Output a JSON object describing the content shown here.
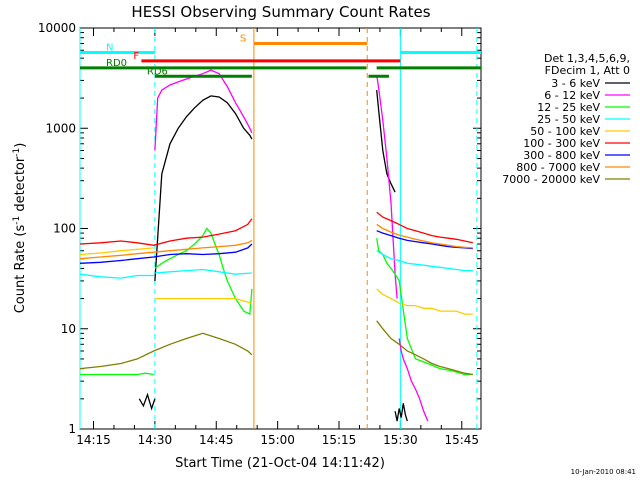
{
  "chart_data": {
    "type": "line",
    "title": "HESSI Observing Summary Count Rates",
    "xlabel": "Start Time (21-Oct-04 14:11:42)",
    "ylabel_main": "Count Rate (s",
    "ylabel_sup1": "-1",
    "ylabel_mid": " detector",
    "ylabel_sup2": "-1",
    "ylabel_end": ")",
    "y_scale": "log",
    "ylim": [
      1,
      10000
    ],
    "xlim_minutes": [
      0,
      98
    ],
    "x_ticks": [
      {
        "label": "14:15",
        "minutes": 3.3
      },
      {
        "label": "14:30",
        "minutes": 18.3
      },
      {
        "label": "14:45",
        "minutes": 33.3
      },
      {
        "label": "15:00",
        "minutes": 48.3
      },
      {
        "label": "15:15",
        "minutes": 63.3
      },
      {
        "label": "15:30",
        "minutes": 78.3
      },
      {
        "label": "15:45",
        "minutes": 93.3
      }
    ],
    "y_ticks": [
      {
        "label": "1",
        "value": 1
      },
      {
        "label": "10",
        "value": 10
      },
      {
        "label": "100",
        "value": 100
      },
      {
        "label": "1000",
        "value": 1000
      },
      {
        "label": "10000",
        "value": 10000
      }
    ],
    "legend_header": [
      "Det 1,3,4,5,6,9,",
      "FDecim 1, Att 0"
    ],
    "legend_placement": "right",
    "series": [
      {
        "name": "3 - 6 keV",
        "color": "#000000",
        "segments": [
          {
            "x": [
              14.5,
              15.5,
              16.5,
              17.5,
              18.3
            ],
            "y": [
              2,
              1.7,
              2.2,
              1.6,
              2
            ]
          },
          {
            "x": [
              18.3,
              20,
              22,
              24,
              26,
              28,
              30,
              32,
              34,
              36,
              38,
              40,
              41.5,
              42
            ],
            "y": [
              30,
              350,
              700,
              1000,
              1300,
              1600,
              1900,
              2100,
              2050,
              1800,
              1400,
              1000,
              850,
              780
            ]
          },
          {
            "x": [
              72.5,
              73,
              74,
              75,
              76,
              77
            ],
            "y": [
              2400,
              1500,
              600,
              350,
              280,
              230
            ]
          },
          {
            "x": [
              77,
              77.5,
              78,
              78.5,
              79,
              79.5,
              80
            ],
            "y": [
              1.5,
              1.2,
              1.6,
              1.3,
              1.8,
              1.4,
              1.2
            ]
          }
        ]
      },
      {
        "name": "6 - 12 keV",
        "color": "#ff00ff",
        "segments": [
          {
            "x": [
              18.3,
              19,
              20,
              22,
              24,
              26,
              28,
              30,
              32,
              34,
              36,
              38,
              40,
              41.5,
              42
            ],
            "y": [
              600,
              2000,
              2400,
              2700,
              2900,
              3100,
              3300,
              3500,
              3800,
              3500,
              2600,
              1800,
              1300,
              1000,
              900
            ]
          },
          {
            "x": [
              72.5,
              73,
              74,
              75,
              76,
              77,
              77.5
            ],
            "y": [
              3400,
              2500,
              1200,
              500,
              180,
              35,
              20
            ]
          },
          {
            "x": [
              78,
              78.5,
              79,
              80,
              81,
              82,
              83,
              84,
              85
            ],
            "y": [
              8,
              6,
              5,
              4,
              3,
              2.5,
              2,
              1.5,
              1.2
            ]
          }
        ]
      },
      {
        "name": "12 - 25 keV",
        "color": "#00ff00",
        "segments": [
          {
            "x": [
              0,
              5,
              10,
              14,
              16,
              18
            ],
            "y": [
              3.5,
              3.5,
              3.5,
              3.5,
              3.6,
              3.5
            ]
          },
          {
            "x": [
              18.3,
              20,
              22,
              24,
              26,
              28,
              30,
              31,
              32,
              33,
              34,
              35,
              36,
              38,
              40,
              41.5,
              42
            ],
            "y": [
              40,
              45,
              50,
              55,
              60,
              70,
              85,
              100,
              90,
              70,
              55,
              40,
              30,
              20,
              15,
              14,
              25
            ]
          },
          {
            "x": [
              72.5,
              73,
              74,
              75,
              76,
              77,
              78,
              80,
              82,
              85,
              88,
              91,
              94,
              96
            ],
            "y": [
              80,
              60,
              55,
              45,
              40,
              35,
              30,
              8,
              5,
              4.5,
              4,
              3.8,
              3.5,
              3.5
            ]
          }
        ]
      },
      {
        "name": "25 - 50 keV",
        "color": "#00ffff",
        "segments": [
          {
            "x": [
              0,
              5,
              10,
              14,
              18
            ],
            "y": [
              35,
              33,
              32,
              34,
              34
            ]
          },
          {
            "x": [
              18.3,
              22,
              26,
              30,
              34,
              38,
              42
            ],
            "y": [
              36,
              37,
              38,
              39,
              37,
              35,
              36
            ]
          },
          {
            "x": [
              72.5,
              74,
              76,
              78,
              80,
              82,
              84,
              86,
              88,
              90,
              92,
              94,
              96
            ],
            "y": [
              60,
              55,
              50,
              48,
              45,
              44,
              43,
              42,
              41,
              40,
              39,
              38,
              38
            ]
          }
        ]
      },
      {
        "name": "50 - 100 keV",
        "color": "#ffcc00",
        "segments": [
          {
            "x": [
              0,
              5,
              10,
              14,
              18
            ],
            "y": [
              55,
              57,
              60,
              62,
              64
            ]
          },
          {
            "x": [
              18.3,
              22,
              26,
              30,
              34,
              38,
              42
            ],
            "y": [
              20,
              20,
              20,
              20,
              20,
              20,
              18
            ]
          },
          {
            "x": [
              72.5,
              74,
              76,
              78,
              80,
              82,
              84,
              86,
              88,
              90,
              92,
              94,
              96
            ],
            "y": [
              25,
              22,
              20,
              18,
              17,
              17,
              16,
              16,
              15,
              15,
              15,
              14,
              14
            ]
          }
        ]
      },
      {
        "name": "100 - 300 keV",
        "color": "#ff0000",
        "segments": [
          {
            "x": [
              0,
              5,
              10,
              14,
              18,
              22,
              26,
              30,
              34,
              38,
              41,
              42
            ],
            "y": [
              70,
              72,
              75,
              72,
              68,
              75,
              80,
              82,
              88,
              95,
              110,
              125
            ]
          },
          {
            "x": [
              72.5,
              74,
              76,
              78,
              80,
              82,
              84,
              86,
              88,
              90,
              92,
              94,
              96
            ],
            "y": [
              145,
              130,
              120,
              110,
              100,
              95,
              90,
              85,
              82,
              80,
              78,
              75,
              72
            ]
          }
        ]
      },
      {
        "name": "300 - 800 keV",
        "color": "#0000ff",
        "segments": [
          {
            "x": [
              0,
              5,
              10,
              14,
              18,
              22,
              26,
              30,
              34,
              38,
              41,
              42
            ],
            "y": [
              45,
              46,
              48,
              50,
              52,
              55,
              56,
              55,
              56,
              58,
              64,
              70
            ]
          },
          {
            "x": [
              72.5,
              74,
              76,
              78,
              80,
              82,
              84,
              86,
              88,
              90,
              92,
              94,
              96
            ],
            "y": [
              95,
              90,
              85,
              80,
              76,
              74,
              72,
              70,
              68,
              66,
              65,
              64,
              63
            ]
          }
        ]
      },
      {
        "name": "800 - 7000 keV",
        "color": "#ff8800",
        "segments": [
          {
            "x": [
              0,
              5,
              10,
              14,
              18,
              22,
              26,
              30,
              34,
              38,
              41,
              42
            ],
            "y": [
              50,
              52,
              54,
              56,
              58,
              60,
              62,
              64,
              66,
              68,
              72,
              76
            ]
          },
          {
            "x": [
              72.5,
              74,
              76,
              78,
              80,
              82,
              84,
              86,
              88,
              90,
              92,
              94,
              96
            ],
            "y": [
              110,
              100,
              92,
              86,
              82,
              78,
              75,
              72,
              70,
              68,
              66,
              65,
              64
            ]
          }
        ]
      },
      {
        "name": "7000 - 20000 keV",
        "color": "#808000",
        "segments": [
          {
            "x": [
              0,
              5,
              10,
              14,
              18,
              22,
              26,
              30,
              34,
              38,
              41,
              42
            ],
            "y": [
              4,
              4.2,
              4.5,
              5,
              6,
              7,
              8,
              9,
              8,
              7,
              6,
              5.5
            ]
          },
          {
            "x": [
              72.5,
              74,
              76,
              78,
              80,
              82,
              84,
              86,
              88,
              90,
              92,
              94,
              96
            ],
            "y": [
              12,
              10,
              8,
              7,
              6,
              5.5,
              5,
              4.5,
              4.2,
              4,
              3.8,
              3.6,
              3.5
            ]
          }
        ]
      }
    ],
    "flags": [
      {
        "label": "N",
        "color": "#00ffff",
        "y": 5700,
        "segments": [
          [
            0,
            18.3
          ],
          [
            78.3,
            98
          ]
        ]
      },
      {
        "label": "S",
        "color": "#ff8800",
        "y": 7000,
        "segments": [
          [
            42.5,
            70.2
          ]
        ]
      },
      {
        "label": "F",
        "color": "#ff0000",
        "y": 4700,
        "segments": [
          [
            15,
            78.3
          ]
        ]
      },
      {
        "label": "RD0",
        "color": "#008000",
        "y": 4000,
        "segments": [
          [
            0,
            70
          ],
          [
            72.5,
            98
          ]
        ]
      },
      {
        "label": "RD6",
        "color": "#008000",
        "y": 3300,
        "segments": [
          [
            18.3,
            42
          ],
          [
            70.5,
            75.5
          ]
        ]
      }
    ],
    "vlines": [
      {
        "x": 0,
        "color": "#00ffff",
        "dashed": false
      },
      {
        "x": 18.3,
        "color": "#00ffff",
        "dashed": true
      },
      {
        "x": 42.5,
        "color": "#ff8800",
        "dashed": false
      },
      {
        "x": 70.2,
        "color": "#ff8800",
        "dashed": true
      },
      {
        "x": 78.3,
        "color": "#00ffff",
        "dashed": false
      },
      {
        "x": 97,
        "color": "#00ffff",
        "dashed": true
      }
    ],
    "footer_date": "10-Jan-2010 08:41"
  }
}
